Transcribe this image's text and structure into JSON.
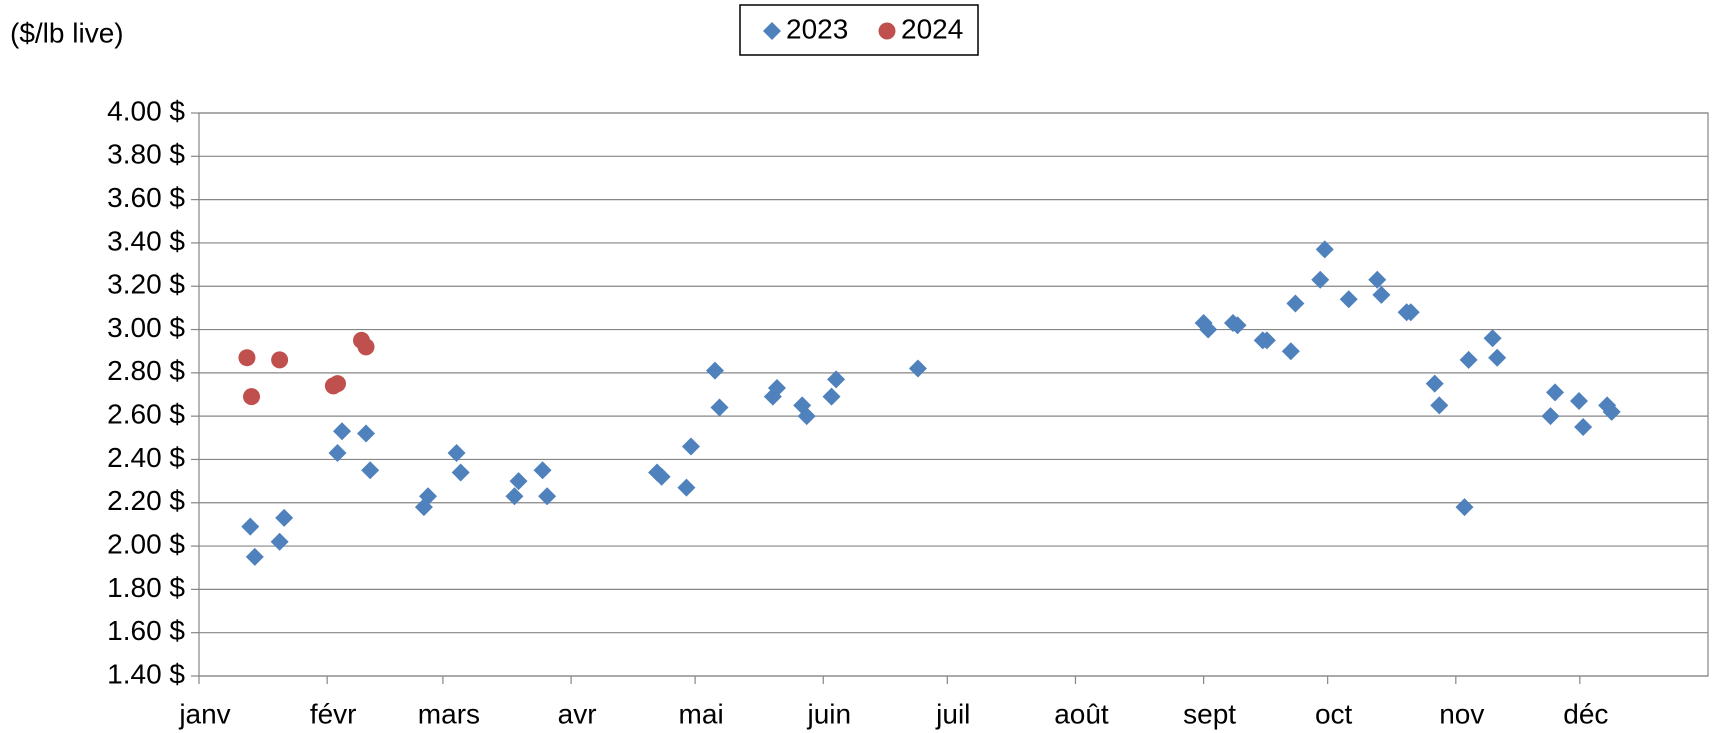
{
  "chart_data": {
    "type": "scatter",
    "y_axis_label": "($/lb live)",
    "legend": "top",
    "grid": true,
    "xlim": [
      0,
      365
    ],
    "xticks": [
      {
        "value": 0,
        "label": "janv"
      },
      {
        "value": 31,
        "label": "févr"
      },
      {
        "value": 59,
        "label": "mars"
      },
      {
        "value": 90,
        "label": "avr"
      },
      {
        "value": 120,
        "label": "mai"
      },
      {
        "value": 151,
        "label": "juin"
      },
      {
        "value": 181,
        "label": "juil"
      },
      {
        "value": 212,
        "label": "août"
      },
      {
        "value": 243,
        "label": "sept"
      },
      {
        "value": 273,
        "label": "oct"
      },
      {
        "value": 304,
        "label": "nov"
      },
      {
        "value": 334,
        "label": "déc"
      }
    ],
    "ylim": [
      1.4,
      4.0
    ],
    "yticks": [
      {
        "value": 1.4,
        "label": "1.40 $"
      },
      {
        "value": 1.6,
        "label": "1.60 $"
      },
      {
        "value": 1.8,
        "label": "1.80 $"
      },
      {
        "value": 2.0,
        "label": "2.00 $"
      },
      {
        "value": 2.2,
        "label": "2.20 $"
      },
      {
        "value": 2.4,
        "label": "2.40 $"
      },
      {
        "value": 2.6,
        "label": "2.60 $"
      },
      {
        "value": 2.8,
        "label": "2.80 $"
      },
      {
        "value": 3.0,
        "label": "3.00 $"
      },
      {
        "value": 3.2,
        "label": "3.20 $"
      },
      {
        "value": 3.4,
        "label": "3.40 $"
      },
      {
        "value": 3.6,
        "label": "3.60 $"
      },
      {
        "value": 3.8,
        "label": "3.80 $"
      },
      {
        "value": 4.0,
        "label": "4.00 $"
      }
    ],
    "series": [
      {
        "name": "2023",
        "color": "#4f81bd",
        "marker": "diamond",
        "x": [
          12.4,
          13.5,
          19.5,
          20.6,
          33.5,
          34.6,
          40.4,
          41.4,
          54.4,
          55.4,
          62.3,
          63.3,
          76.3,
          77.3,
          83.1,
          84.2,
          110.8,
          111.9,
          117.9,
          119.0,
          124.8,
          125.9,
          138.8,
          139.8,
          145.9,
          147.0,
          153.0,
          154.1,
          173.9,
          243.0,
          244.1,
          250.1,
          251.2,
          257.3,
          258.3,
          264.1,
          265.2,
          271.2,
          272.3,
          278.1,
          285.0,
          286.0,
          292.1,
          293.1,
          298.9,
          300.0,
          306.1,
          307.1,
          312.9,
          314.0,
          326.9,
          328.0,
          333.8,
          334.8,
          340.6,
          341.7
        ],
        "values": [
          2.09,
          1.95,
          2.02,
          2.13,
          2.43,
          2.53,
          2.52,
          2.35,
          2.18,
          2.23,
          2.43,
          2.34,
          2.23,
          2.3,
          2.35,
          2.23,
          2.34,
          2.32,
          2.27,
          2.46,
          2.81,
          2.64,
          2.69,
          2.73,
          2.65,
          2.6,
          2.69,
          2.77,
          2.82,
          3.03,
          3.0,
          3.03,
          3.02,
          2.95,
          2.95,
          2.9,
          3.12,
          3.23,
          3.37,
          3.14,
          3.23,
          3.16,
          3.08,
          3.08,
          2.75,
          2.65,
          2.18,
          2.86,
          2.96,
          2.87,
          2.6,
          2.71,
          2.67,
          2.55,
          2.65,
          2.62
        ]
      },
      {
        "name": "2024",
        "color": "#c0504d",
        "marker": "circle",
        "x": [
          11.6,
          12.7,
          19.5,
          32.5,
          33.5,
          39.3,
          40.4
        ],
        "values": [
          2.87,
          2.69,
          2.86,
          2.74,
          2.75,
          2.95,
          2.92
        ]
      }
    ]
  }
}
